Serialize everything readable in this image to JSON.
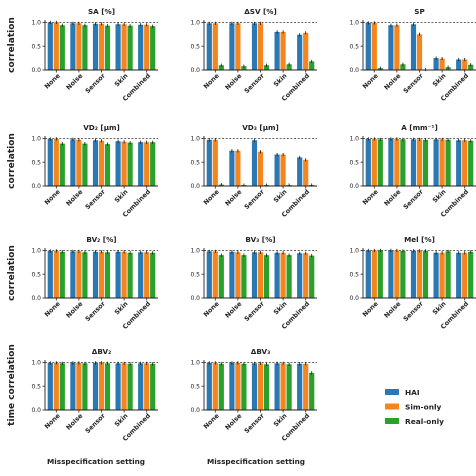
{
  "figure": {
    "categories": [
      "None",
      "Noise",
      "Sensor",
      "Skin",
      "Combined"
    ],
    "yticks": [
      "0.0",
      "0.5",
      "1.0"
    ],
    "row_labels": [
      "correlation",
      "correlation",
      "correlation",
      "time correlation"
    ],
    "xlabel": "Misspecification setting",
    "series": [
      {
        "name": "HAI",
        "color": "#2a78b4"
      },
      {
        "name": "Sim-only",
        "color": "#f5861f"
      },
      {
        "name": "Real-only",
        "color": "#2ca02c"
      }
    ]
  },
  "chart_data": [
    {
      "type": "bar",
      "title": "SA [%]",
      "ylim": [
        0,
        1.05
      ],
      "series": [
        {
          "name": "HAI",
          "values": [
            1.0,
            0.98,
            0.97,
            0.96,
            0.95
          ]
        },
        {
          "name": "Sim-only",
          "values": [
            1.0,
            0.98,
            0.97,
            0.96,
            0.95
          ]
        },
        {
          "name": "Real-only",
          "values": [
            0.94,
            0.94,
            0.93,
            0.93,
            0.92
          ]
        }
      ]
    },
    {
      "type": "bar",
      "title": "ΔSV [%]",
      "ylim": [
        0,
        1.05
      ],
      "series": [
        {
          "name": "HAI",
          "values": [
            0.98,
            0.98,
            0.98,
            0.8,
            0.74
          ]
        },
        {
          "name": "Sim-only",
          "values": [
            0.98,
            0.98,
            0.98,
            0.8,
            0.78
          ]
        },
        {
          "name": "Real-only",
          "values": [
            0.1,
            0.08,
            0.1,
            0.12,
            0.18
          ]
        }
      ]
    },
    {
      "type": "bar",
      "title": "SP",
      "ylim": [
        0,
        1.05
      ],
      "series": [
        {
          "name": "HAI",
          "values": [
            0.99,
            0.94,
            0.96,
            0.25,
            0.22
          ]
        },
        {
          "name": "Sim-only",
          "values": [
            0.99,
            0.94,
            0.75,
            0.24,
            0.22
          ]
        },
        {
          "name": "Real-only",
          "values": [
            0.04,
            0.12,
            0.01,
            0.06,
            0.11
          ]
        }
      ]
    },
    {
      "type": "bar",
      "title": "VD₂ [μm]",
      "ylim": [
        0,
        1.05
      ],
      "series": [
        {
          "name": "HAI",
          "values": [
            0.99,
            0.98,
            0.96,
            0.94,
            0.92
          ]
        },
        {
          "name": "Sim-only",
          "values": [
            0.99,
            0.97,
            0.95,
            0.93,
            0.92
          ]
        },
        {
          "name": "Real-only",
          "values": [
            0.89,
            0.89,
            0.88,
            0.91,
            0.92
          ]
        }
      ]
    },
    {
      "type": "bar",
      "title": "VD₃ [μm]",
      "ylim": [
        0,
        1.05
      ],
      "series": [
        {
          "name": "HAI",
          "values": [
            0.97,
            0.74,
            0.96,
            0.66,
            0.6
          ]
        },
        {
          "name": "Sim-only",
          "values": [
            0.97,
            0.74,
            0.72,
            0.66,
            0.55
          ]
        },
        {
          "name": "Real-only",
          "values": [
            0.03,
            0.02,
            0.02,
            0.02,
            0.02
          ]
        }
      ]
    },
    {
      "type": "bar",
      "title": "A [mm⁻¹]",
      "ylim": [
        0,
        1.05
      ],
      "series": [
        {
          "name": "HAI",
          "values": [
            0.99,
            0.99,
            0.98,
            0.98,
            0.96
          ]
        },
        {
          "name": "Sim-only",
          "values": [
            0.99,
            0.99,
            0.98,
            0.98,
            0.96
          ]
        },
        {
          "name": "Real-only",
          "values": [
            0.98,
            0.98,
            0.97,
            0.97,
            0.95
          ]
        }
      ]
    },
    {
      "type": "bar",
      "title": "BV₂ [%]",
      "ylim": [
        0,
        1.05
      ],
      "series": [
        {
          "name": "HAI",
          "values": [
            0.99,
            0.98,
            0.97,
            0.97,
            0.96
          ]
        },
        {
          "name": "Sim-only",
          "values": [
            0.99,
            0.98,
            0.97,
            0.97,
            0.96
          ]
        },
        {
          "name": "Real-only",
          "values": [
            0.97,
            0.96,
            0.96,
            0.95,
            0.95
          ]
        }
      ]
    },
    {
      "type": "bar",
      "title": "BV₃ [%]",
      "ylim": [
        0,
        1.05
      ],
      "series": [
        {
          "name": "HAI",
          "values": [
            0.98,
            0.97,
            0.96,
            0.95,
            0.94
          ]
        },
        {
          "name": "Sim-only",
          "values": [
            0.98,
            0.96,
            0.96,
            0.95,
            0.94
          ]
        },
        {
          "name": "Real-only",
          "values": [
            0.9,
            0.9,
            0.9,
            0.9,
            0.89
          ]
        }
      ]
    },
    {
      "type": "bar",
      "title": "Mel [%]",
      "ylim": [
        0,
        1.05
      ],
      "series": [
        {
          "name": "HAI",
          "values": [
            1.0,
            1.0,
            0.99,
            0.95,
            0.95
          ]
        },
        {
          "name": "Sim-only",
          "values": [
            1.0,
            1.0,
            0.99,
            0.95,
            0.95
          ]
        },
        {
          "name": "Real-only",
          "values": [
            1.0,
            0.99,
            0.99,
            0.98,
            0.97
          ]
        }
      ]
    },
    {
      "type": "bar",
      "title": "ΔBV₂",
      "ylim": [
        0,
        1.05
      ],
      "series": [
        {
          "name": "HAI",
          "values": [
            0.99,
            0.99,
            0.99,
            0.98,
            0.98
          ]
        },
        {
          "name": "Sim-only",
          "values": [
            0.99,
            0.99,
            0.99,
            0.98,
            0.98
          ]
        },
        {
          "name": "Real-only",
          "values": [
            0.98,
            0.98,
            0.98,
            0.97,
            0.97
          ]
        }
      ]
    },
    {
      "type": "bar",
      "title": "ΔBV₃",
      "ylim": [
        0,
        1.05
      ],
      "series": [
        {
          "name": "HAI",
          "values": [
            0.99,
            0.99,
            0.98,
            0.98,
            0.97
          ]
        },
        {
          "name": "Sim-only",
          "values": [
            0.99,
            0.99,
            0.98,
            0.98,
            0.97
          ]
        },
        {
          "name": "Real-only",
          "values": [
            0.97,
            0.97,
            0.96,
            0.96,
            0.78
          ]
        }
      ]
    }
  ]
}
